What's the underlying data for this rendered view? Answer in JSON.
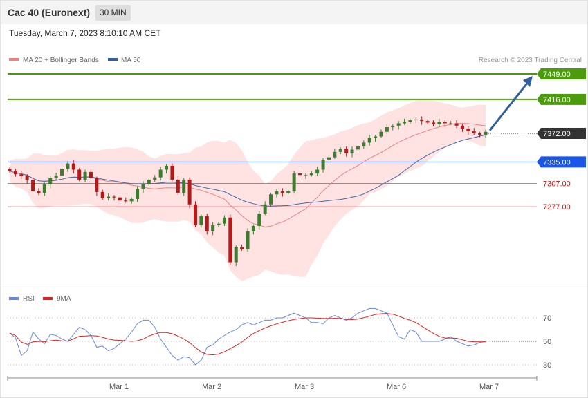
{
  "header": {
    "title": "Cac 40 (Euronext)",
    "interval": "30 MIN"
  },
  "timestamp": "Tuesday, March 7, 2023 8:10:10 AM CET",
  "copyright": "Research © 2023 Trading Central",
  "colors": {
    "resistance": "#4c9a0e",
    "support": "#1a56e8",
    "target": "#e04040",
    "arrow": "#2f5d9e",
    "up": "#3f7a31",
    "down": "#b41a1a",
    "band": "#ffd7d7",
    "ma50": "#4468a8",
    "rsi": "#6688dd",
    "rsi_ma": "#dd2222"
  },
  "chart_data": [
    {
      "type": "candlestick",
      "legend": [
        "MA 20 + Bollinger Bands",
        "MA 50"
      ],
      "x_ticks": [
        "Mar 1",
        "Mar 2",
        "Mar 3",
        "Mar 6",
        "Mar 7"
      ],
      "ylim": [
        7185,
        7462
      ],
      "levels": [
        {
          "value": 7449.0,
          "label": "7449.00",
          "kind": "resistance"
        },
        {
          "value": 7416.0,
          "label": "7416.00",
          "kind": "resistance"
        },
        {
          "value": 7372.0,
          "label": "7372.00",
          "kind": "last"
        },
        {
          "value": 7335.0,
          "label": "7335.00",
          "kind": "support"
        },
        {
          "value": 7307.0,
          "label": "7307.00",
          "kind": "target"
        },
        {
          "value": 7277.0,
          "label": "7277.00",
          "kind": "target"
        }
      ],
      "candles_close_key": [
        7323,
        7319,
        7317,
        7312,
        7297,
        7295,
        7306,
        7314,
        7317,
        7326,
        7333,
        7325,
        7312,
        7322,
        7314,
        7296,
        7288,
        7290,
        7289,
        7285,
        7284,
        7287,
        7300,
        7306,
        7312,
        7315,
        7325,
        7330,
        7312,
        7295,
        7312,
        7280,
        7253,
        7265,
        7245,
        7253,
        7255,
        7263,
        7205,
        7225,
        7222,
        7245,
        7252,
        7268,
        7280,
        7293,
        7297,
        7295,
        7297,
        7320,
        7318,
        7318,
        7320,
        7325,
        7338,
        7341,
        7348,
        7352,
        7346,
        7351,
        7355,
        7360,
        7366,
        7368,
        7374,
        7380,
        7382,
        7385,
        7387,
        7389,
        7390,
        7388,
        7386,
        7384,
        7387,
        7385,
        7385,
        7382,
        7378,
        7375,
        7372,
        7370,
        7374
      ],
      "rsi": {
        "legend": [
          "RSI",
          "9MA"
        ],
        "y_ticks": [
          70,
          50,
          30
        ],
        "current": 50,
        "values": [
          57,
          53,
          38,
          42,
          58,
          52,
          48,
          56,
          55,
          52,
          50,
          56,
          62,
          60,
          55,
          45,
          46,
          42,
          44,
          48,
          52,
          58,
          65,
          68,
          68,
          62,
          52,
          45,
          38,
          34,
          37,
          36,
          30,
          34,
          45,
          47,
          52,
          55,
          58,
          60,
          64,
          66,
          64,
          66,
          68,
          68,
          70,
          70,
          72,
          74,
          72,
          70,
          66,
          66,
          65,
          70,
          72,
          70,
          68,
          70,
          74,
          76,
          78,
          78,
          76,
          74,
          64,
          54,
          52,
          60,
          58,
          50,
          50,
          50,
          50,
          52,
          54,
          50,
          48,
          46,
          47,
          49,
          50
        ]
      }
    }
  ]
}
